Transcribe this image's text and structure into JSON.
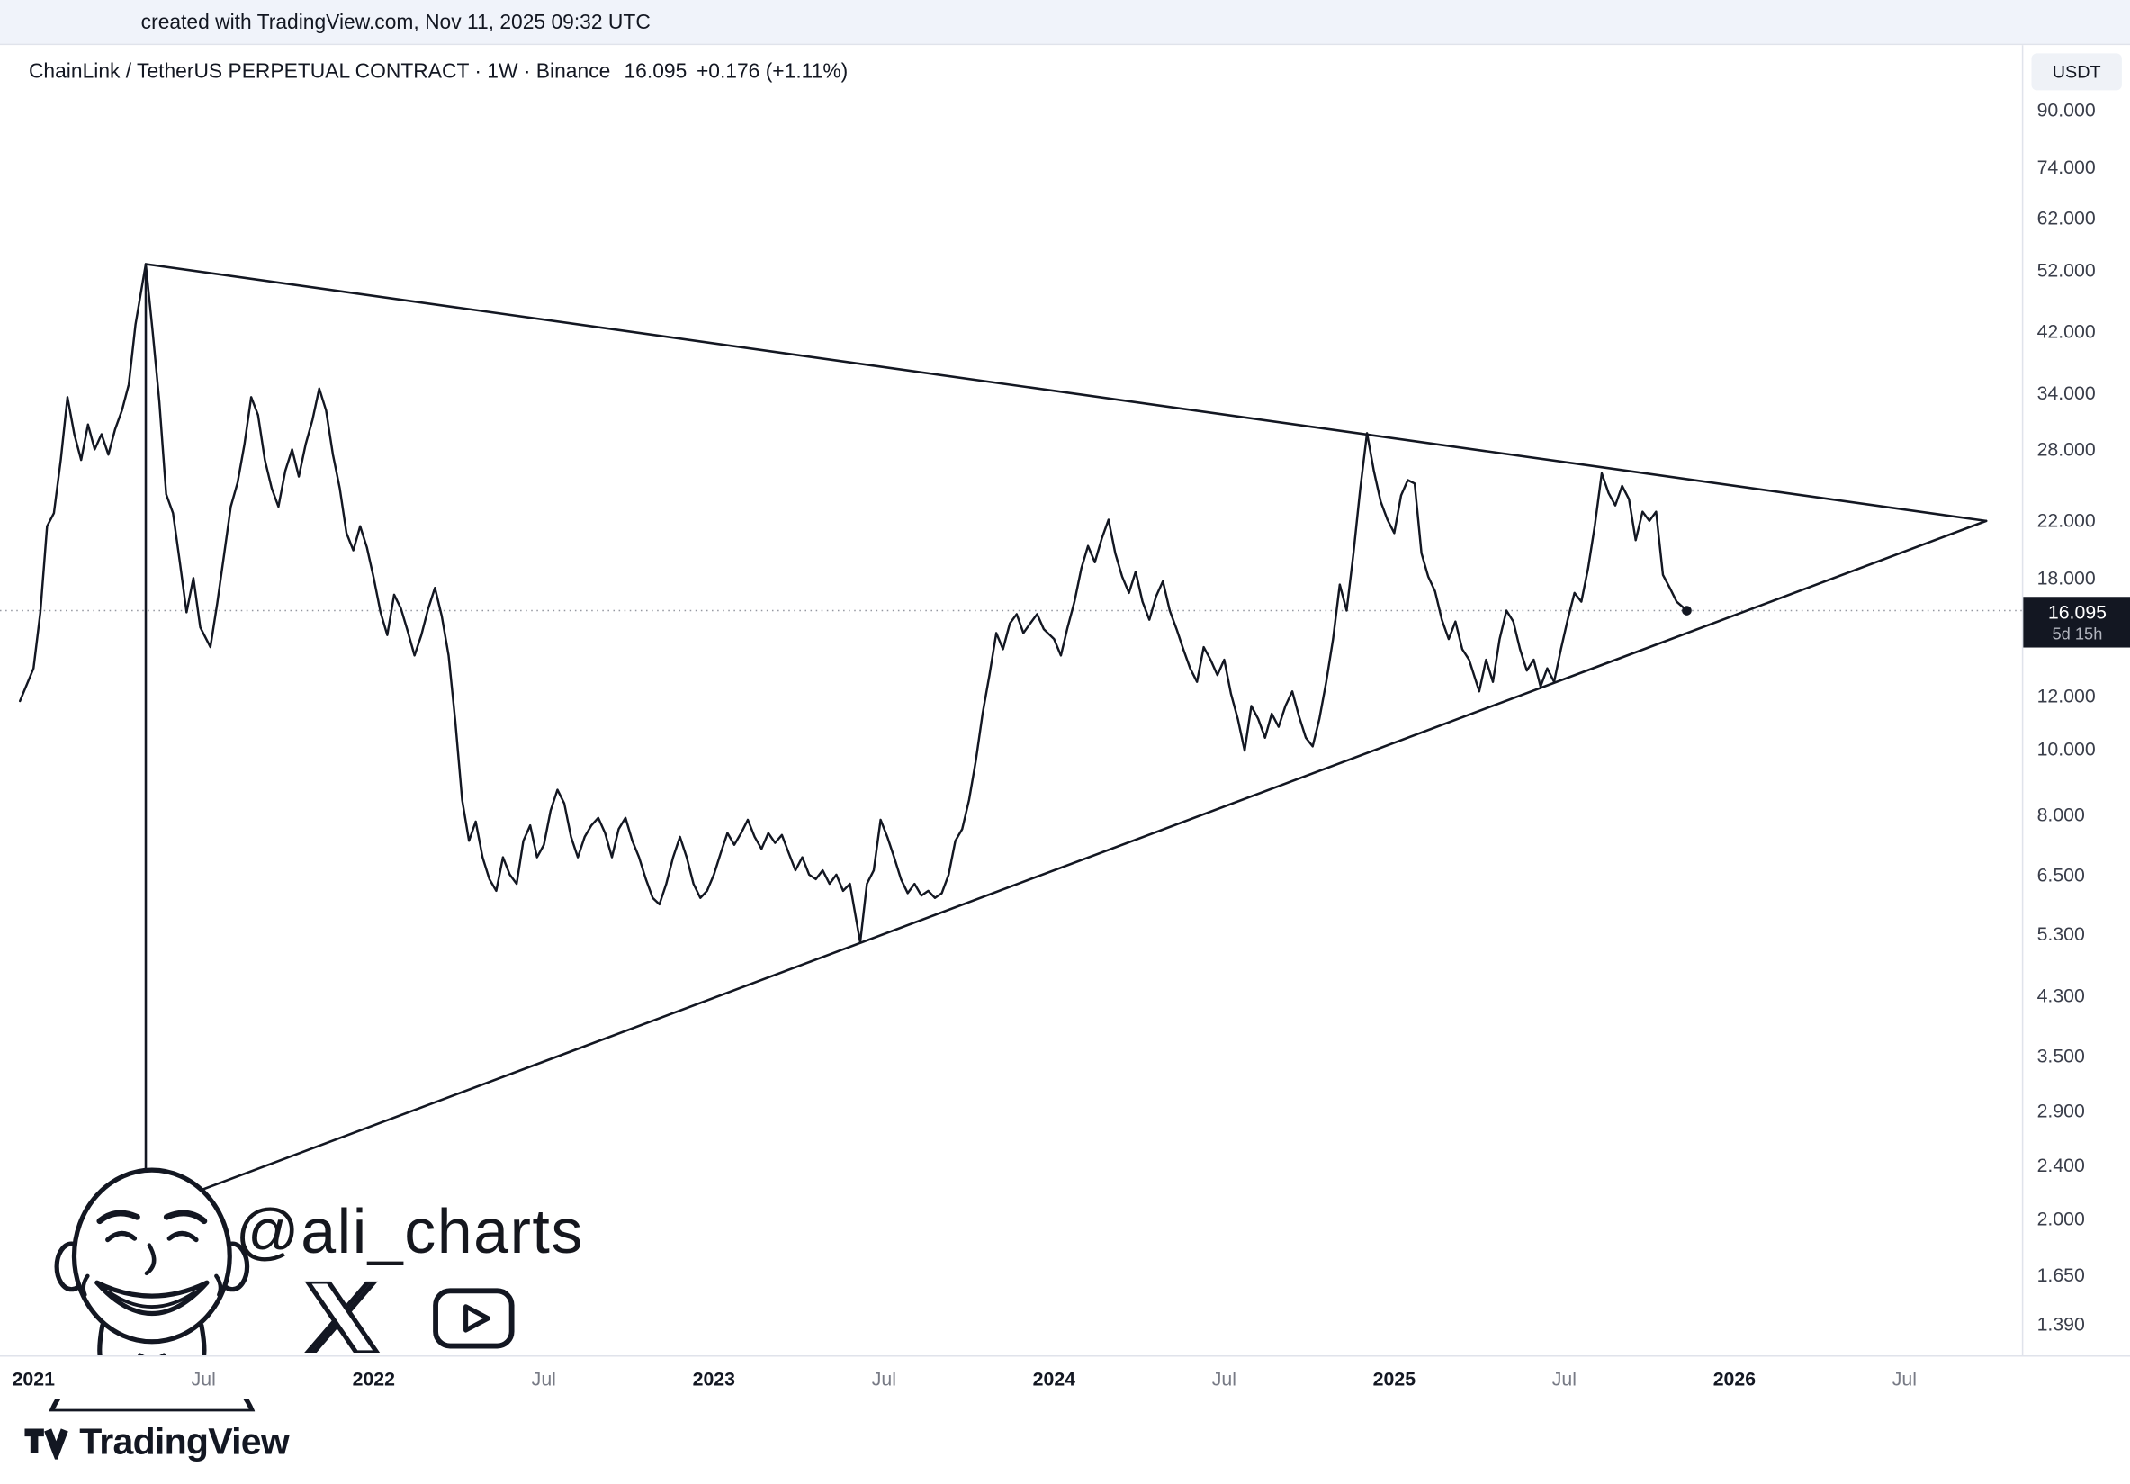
{
  "attribution": "created with TradingView.com, Nov 11, 2025 09:32 UTC",
  "legend": {
    "symbol": "ChainLink / TetherUS PERPETUAL CONTRACT · 1W · Binance",
    "last_price": "16.095",
    "change": "+0.176 (+1.11%)"
  },
  "price_axis": {
    "currency_label": "USDT",
    "ticks": [
      {
        "label": "90.000",
        "value": 90
      },
      {
        "label": "74.000",
        "value": 74
      },
      {
        "label": "62.000",
        "value": 62
      },
      {
        "label": "52.000",
        "value": 52
      },
      {
        "label": "42.000",
        "value": 42
      },
      {
        "label": "34.000",
        "value": 34
      },
      {
        "label": "28.000",
        "value": 28
      },
      {
        "label": "22.000",
        "value": 22
      },
      {
        "label": "18.000",
        "value": 18
      },
      {
        "label": "12.000",
        "value": 12
      },
      {
        "label": "10.000",
        "value": 10
      },
      {
        "label": "8.000",
        "value": 8
      },
      {
        "label": "6.500",
        "value": 6.5
      },
      {
        "label": "5.300",
        "value": 5.3
      },
      {
        "label": "4.300",
        "value": 4.3
      },
      {
        "label": "3.500",
        "value": 3.5
      },
      {
        "label": "2.900",
        "value": 2.9
      },
      {
        "label": "2.400",
        "value": 2.4
      },
      {
        "label": "2.000",
        "value": 2
      },
      {
        "label": "1.650",
        "value": 1.65
      },
      {
        "label": "1.390",
        "value": 1.39
      }
    ],
    "badge": {
      "price": "16.095",
      "countdown": "5d 15h"
    }
  },
  "time_axis": {
    "labels": [
      {
        "label": "2021",
        "t": 2021,
        "major": true
      },
      {
        "label": "Jul",
        "t": 2021.5,
        "major": false
      },
      {
        "label": "2022",
        "t": 2022,
        "major": true
      },
      {
        "label": "Jul",
        "t": 2022.5,
        "major": false
      },
      {
        "label": "2023",
        "t": 2023,
        "major": true
      },
      {
        "label": "Jul",
        "t": 2023.5,
        "major": false
      },
      {
        "label": "2024",
        "t": 2024,
        "major": true
      },
      {
        "label": "Jul",
        "t": 2024.5,
        "major": false
      },
      {
        "label": "2025",
        "t": 2025,
        "major": true
      },
      {
        "label": "Jul",
        "t": 2025.5,
        "major": false
      },
      {
        "label": "2026",
        "t": 2026,
        "major": true
      },
      {
        "label": "Jul",
        "t": 2026.5,
        "major": false
      }
    ]
  },
  "watermark": {
    "handle": "@ali_charts",
    "icons": [
      "x-icon",
      "youtube-icon"
    ]
  },
  "footer": {
    "brand": "TradingView"
  },
  "colors": {
    "line": "#131722",
    "drawing": "#131722",
    "badge_bg": "#131722",
    "dotted_price_line": "#9598a1",
    "axis_border": "#e0e3eb",
    "top_strip_bg": "#f0f3fa"
  },
  "chart_data": {
    "type": "line",
    "title": "ChainLink / TetherUS PERPETUAL CONTRACT · 1W · Binance",
    "timeframe": "1W",
    "scale": "log",
    "ylabel": "USDT",
    "x_range_years": [
      2020.93,
      2026.9
    ],
    "y_range": [
      1.39,
      95
    ],
    "current_price": 16.095,
    "series": [
      {
        "name": "LINK/USDT weekly close",
        "points": [
          [
            2020.96,
            11.8
          ],
          [
            2021.0,
            13.2
          ],
          [
            2021.02,
            16.0
          ],
          [
            2021.04,
            21.5
          ],
          [
            2021.06,
            22.5
          ],
          [
            2021.08,
            27.0
          ],
          [
            2021.1,
            33.5
          ],
          [
            2021.12,
            29.5
          ],
          [
            2021.14,
            27.0
          ],
          [
            2021.16,
            30.5
          ],
          [
            2021.18,
            28.0
          ],
          [
            2021.2,
            29.5
          ],
          [
            2021.22,
            27.5
          ],
          [
            2021.24,
            30.0
          ],
          [
            2021.26,
            32.0
          ],
          [
            2021.28,
            35.0
          ],
          [
            2021.3,
            43.0
          ],
          [
            2021.33,
            52.9
          ],
          [
            2021.35,
            42.0
          ],
          [
            2021.37,
            33.0
          ],
          [
            2021.39,
            24.0
          ],
          [
            2021.41,
            22.5
          ],
          [
            2021.43,
            19.0
          ],
          [
            2021.45,
            16.0
          ],
          [
            2021.47,
            18.0
          ],
          [
            2021.49,
            15.2
          ],
          [
            2021.52,
            14.2
          ],
          [
            2021.54,
            16.5
          ],
          [
            2021.56,
            19.5
          ],
          [
            2021.58,
            23.0
          ],
          [
            2021.6,
            25.0
          ],
          [
            2021.62,
            28.5
          ],
          [
            2021.64,
            33.5
          ],
          [
            2021.66,
            31.5
          ],
          [
            2021.68,
            27.0
          ],
          [
            2021.7,
            24.5
          ],
          [
            2021.72,
            23.0
          ],
          [
            2021.74,
            26.0
          ],
          [
            2021.76,
            28.0
          ],
          [
            2021.78,
            25.5
          ],
          [
            2021.8,
            28.5
          ],
          [
            2021.82,
            31.0
          ],
          [
            2021.84,
            34.5
          ],
          [
            2021.86,
            32.0
          ],
          [
            2021.88,
            27.5
          ],
          [
            2021.9,
            24.5
          ],
          [
            2021.92,
            21.0
          ],
          [
            2021.94,
            19.8
          ],
          [
            2021.96,
            21.5
          ],
          [
            2021.98,
            20.0
          ],
          [
            2022.0,
            18.0
          ],
          [
            2022.02,
            16.0
          ],
          [
            2022.04,
            14.8
          ],
          [
            2022.06,
            17.0
          ],
          [
            2022.08,
            16.2
          ],
          [
            2022.1,
            15.0
          ],
          [
            2022.12,
            13.8
          ],
          [
            2022.14,
            14.8
          ],
          [
            2022.16,
            16.2
          ],
          [
            2022.18,
            17.4
          ],
          [
            2022.2,
            15.8
          ],
          [
            2022.22,
            13.8
          ],
          [
            2022.24,
            11.0
          ],
          [
            2022.26,
            8.4
          ],
          [
            2022.28,
            7.3
          ],
          [
            2022.3,
            7.8
          ],
          [
            2022.32,
            6.9
          ],
          [
            2022.34,
            6.4
          ],
          [
            2022.36,
            6.15
          ],
          [
            2022.38,
            6.9
          ],
          [
            2022.4,
            6.5
          ],
          [
            2022.42,
            6.3
          ],
          [
            2022.44,
            7.3
          ],
          [
            2022.46,
            7.7
          ],
          [
            2022.48,
            6.9
          ],
          [
            2022.5,
            7.2
          ],
          [
            2022.52,
            8.1
          ],
          [
            2022.54,
            8.7
          ],
          [
            2022.56,
            8.3
          ],
          [
            2022.58,
            7.4
          ],
          [
            2022.6,
            6.9
          ],
          [
            2022.62,
            7.4
          ],
          [
            2022.64,
            7.7
          ],
          [
            2022.66,
            7.9
          ],
          [
            2022.68,
            7.5
          ],
          [
            2022.7,
            6.9
          ],
          [
            2022.72,
            7.6
          ],
          [
            2022.74,
            7.9
          ],
          [
            2022.76,
            7.3
          ],
          [
            2022.78,
            6.9
          ],
          [
            2022.8,
            6.4
          ],
          [
            2022.82,
            6.0
          ],
          [
            2022.84,
            5.87
          ],
          [
            2022.86,
            6.3
          ],
          [
            2022.88,
            6.9
          ],
          [
            2022.9,
            7.4
          ],
          [
            2022.92,
            6.9
          ],
          [
            2022.94,
            6.3
          ],
          [
            2022.96,
            6.0
          ],
          [
            2022.98,
            6.15
          ],
          [
            2023.0,
            6.5
          ],
          [
            2023.02,
            7.0
          ],
          [
            2023.04,
            7.5
          ],
          [
            2023.06,
            7.2
          ],
          [
            2023.08,
            7.5
          ],
          [
            2023.1,
            7.85
          ],
          [
            2023.12,
            7.4
          ],
          [
            2023.14,
            7.1
          ],
          [
            2023.16,
            7.5
          ],
          [
            2023.18,
            7.25
          ],
          [
            2023.2,
            7.45
          ],
          [
            2023.22,
            7.0
          ],
          [
            2023.24,
            6.6
          ],
          [
            2023.26,
            6.9
          ],
          [
            2023.28,
            6.5
          ],
          [
            2023.3,
            6.4
          ],
          [
            2023.32,
            6.6
          ],
          [
            2023.34,
            6.3
          ],
          [
            2023.36,
            6.5
          ],
          [
            2023.38,
            6.15
          ],
          [
            2023.4,
            6.3
          ],
          [
            2023.43,
            5.15
          ],
          [
            2023.45,
            6.3
          ],
          [
            2023.47,
            6.6
          ],
          [
            2023.49,
            7.85
          ],
          [
            2023.51,
            7.4
          ],
          [
            2023.53,
            6.9
          ],
          [
            2023.55,
            6.4
          ],
          [
            2023.57,
            6.1
          ],
          [
            2023.59,
            6.3
          ],
          [
            2023.61,
            6.05
          ],
          [
            2023.63,
            6.15
          ],
          [
            2023.65,
            6.0
          ],
          [
            2023.67,
            6.1
          ],
          [
            2023.69,
            6.5
          ],
          [
            2023.71,
            7.3
          ],
          [
            2023.73,
            7.6
          ],
          [
            2023.75,
            8.4
          ],
          [
            2023.77,
            9.6
          ],
          [
            2023.79,
            11.3
          ],
          [
            2023.81,
            12.9
          ],
          [
            2023.83,
            14.9
          ],
          [
            2023.85,
            14.1
          ],
          [
            2023.87,
            15.4
          ],
          [
            2023.89,
            15.9
          ],
          [
            2023.91,
            14.9
          ],
          [
            2023.93,
            15.4
          ],
          [
            2023.95,
            15.9
          ],
          [
            2023.97,
            15.1
          ],
          [
            2024.0,
            14.6
          ],
          [
            2024.02,
            13.8
          ],
          [
            2024.04,
            15.2
          ],
          [
            2024.06,
            16.6
          ],
          [
            2024.08,
            18.6
          ],
          [
            2024.1,
            20.1
          ],
          [
            2024.12,
            19.0
          ],
          [
            2024.14,
            20.6
          ],
          [
            2024.16,
            22.0
          ],
          [
            2024.18,
            19.6
          ],
          [
            2024.2,
            18.1
          ],
          [
            2024.22,
            17.1
          ],
          [
            2024.24,
            18.4
          ],
          [
            2024.26,
            16.6
          ],
          [
            2024.28,
            15.6
          ],
          [
            2024.3,
            16.9
          ],
          [
            2024.32,
            17.8
          ],
          [
            2024.34,
            16.1
          ],
          [
            2024.36,
            15.1
          ],
          [
            2024.38,
            14.1
          ],
          [
            2024.4,
            13.2
          ],
          [
            2024.42,
            12.6
          ],
          [
            2024.44,
            14.2
          ],
          [
            2024.46,
            13.6
          ],
          [
            2024.48,
            12.9
          ],
          [
            2024.5,
            13.6
          ],
          [
            2024.52,
            12.1
          ],
          [
            2024.54,
            11.1
          ],
          [
            2024.56,
            9.95
          ],
          [
            2024.58,
            11.6
          ],
          [
            2024.6,
            11.1
          ],
          [
            2024.62,
            10.4
          ],
          [
            2024.64,
            11.3
          ],
          [
            2024.66,
            10.8
          ],
          [
            2024.68,
            11.6
          ],
          [
            2024.7,
            12.2
          ],
          [
            2024.72,
            11.2
          ],
          [
            2024.74,
            10.4
          ],
          [
            2024.76,
            10.1
          ],
          [
            2024.78,
            11.1
          ],
          [
            2024.8,
            12.6
          ],
          [
            2024.82,
            14.6
          ],
          [
            2024.84,
            17.6
          ],
          [
            2024.86,
            16.1
          ],
          [
            2024.88,
            19.6
          ],
          [
            2024.9,
            24.5
          ],
          [
            2024.92,
            29.6
          ],
          [
            2024.94,
            26.0
          ],
          [
            2024.96,
            23.4
          ],
          [
            2024.98,
            22.0
          ],
          [
            2025.0,
            21.0
          ],
          [
            2025.02,
            23.9
          ],
          [
            2025.04,
            25.2
          ],
          [
            2025.06,
            24.9
          ],
          [
            2025.08,
            19.6
          ],
          [
            2025.1,
            18.1
          ],
          [
            2025.12,
            17.2
          ],
          [
            2025.14,
            15.6
          ],
          [
            2025.16,
            14.6
          ],
          [
            2025.18,
            15.5
          ],
          [
            2025.2,
            14.1
          ],
          [
            2025.22,
            13.6
          ],
          [
            2025.25,
            12.2
          ],
          [
            2025.27,
            13.6
          ],
          [
            2025.29,
            12.6
          ],
          [
            2025.31,
            14.6
          ],
          [
            2025.33,
            16.1
          ],
          [
            2025.35,
            15.5
          ],
          [
            2025.37,
            14.1
          ],
          [
            2025.39,
            13.1
          ],
          [
            2025.41,
            13.6
          ],
          [
            2025.43,
            12.4
          ],
          [
            2025.45,
            13.2
          ],
          [
            2025.47,
            12.6
          ],
          [
            2025.49,
            14.1
          ],
          [
            2025.51,
            15.6
          ],
          [
            2025.53,
            17.1
          ],
          [
            2025.55,
            16.6
          ],
          [
            2025.57,
            18.6
          ],
          [
            2025.59,
            21.6
          ],
          [
            2025.61,
            25.8
          ],
          [
            2025.63,
            24.1
          ],
          [
            2025.65,
            23.1
          ],
          [
            2025.67,
            24.7
          ],
          [
            2025.69,
            23.6
          ],
          [
            2025.71,
            20.5
          ],
          [
            2025.73,
            22.6
          ],
          [
            2025.75,
            21.9
          ],
          [
            2025.77,
            22.6
          ],
          [
            2025.79,
            18.2
          ],
          [
            2025.81,
            17.4
          ],
          [
            2025.83,
            16.6
          ],
          [
            2025.86,
            16.095
          ]
        ]
      }
    ],
    "drawings": {
      "symmetrical_triangle": {
        "top_anchor": [
          2021.33,
          52.9
        ],
        "bottom_anchor": [
          2021.33,
          2.05
        ],
        "apex": [
          2026.74,
          21.9
        ]
      }
    },
    "legend_position": "top-left",
    "grid": false
  }
}
